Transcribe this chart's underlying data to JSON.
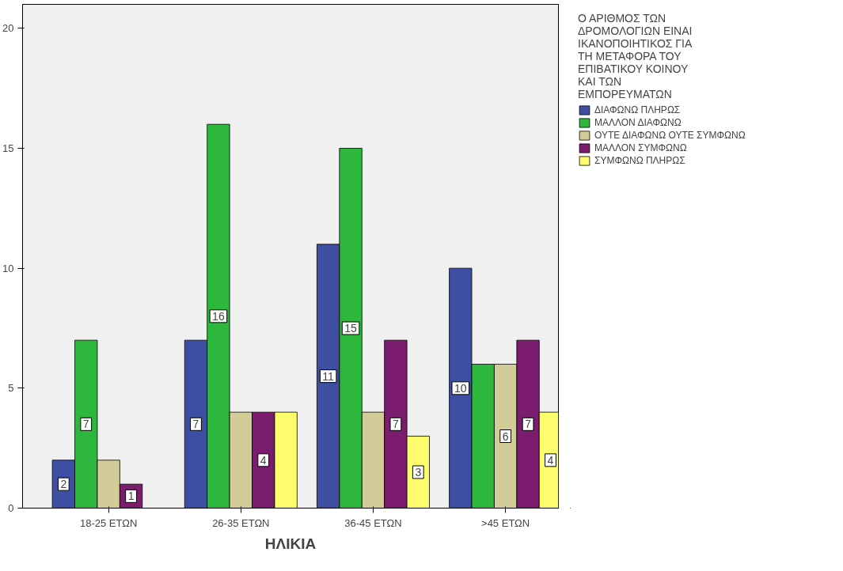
{
  "chart_data": {
    "type": "bar",
    "xlabel": "ΗΛΙΚΙΑ",
    "legend_title": "Ο ΑΡΙΘΜΟΣ ΤΩΝ ΔΡΟΜΟΛΟΓΙΩΝ ΕΙΝΑΙ ΙΚΑΝΟΠΟΙΗΤΙΚΟΣ ΓΙΑ ΤΗ ΜΕΤΑΦΟΡΑ ΤΟΥ ΕΠΙΒΑΤΙΚΟΥ ΚΟΙΝΟΥ ΚΑΙ ΤΩΝ ΕΜΠΟΡΕΥΜΑΤΩΝ",
    "categories": [
      "18-25 ΕΤΩΝ",
      "26-35 ΕΤΩΝ",
      "36-45 ΕΤΩΝ",
      ">45 ΕΤΩΝ"
    ],
    "series": [
      {
        "name": "ΔΙΑΦΩΝΩ ΠΛΗΡΩΣ",
        "color": "#3e4fa3",
        "values": [
          2,
          7,
          11,
          10
        ],
        "value_labels": [
          "2",
          "7",
          "11",
          "10"
        ]
      },
      {
        "name": "ΜΑΛΛΟΝ ΔΙΑΦΩΝΩ",
        "color": "#2db83d",
        "values": [
          7,
          16,
          15,
          6
        ],
        "value_labels": [
          "7",
          "16",
          "15",
          null
        ]
      },
      {
        "name": "ΟΥΤΕ ΔΙΑΦΩΝΩ ΟΥΤΕ ΣΥΜΦΩΝΩ",
        "color": "#d4cc98",
        "values": [
          2,
          4,
          4,
          6
        ],
        "value_labels": [
          null,
          null,
          null,
          "6"
        ]
      },
      {
        "name": "ΜΑΛΛΟΝ ΣΥΜΦΩΝΩ",
        "color": "#7c1c6e",
        "values": [
          1,
          4,
          7,
          7
        ],
        "value_labels": [
          "1",
          "4",
          "7",
          "7"
        ]
      },
      {
        "name": "ΣΥΜΦΩΝΩ ΠΛΗΡΩΣ",
        "color": "#fcfc6c",
        "values": [
          null,
          4,
          3,
          4
        ],
        "value_labels": [
          null,
          null,
          "3",
          "4"
        ]
      }
    ],
    "ylim": [
      0,
      21
    ],
    "yticks": [
      0,
      5,
      10,
      15,
      20
    ],
    "grid": false,
    "legend": "right"
  }
}
